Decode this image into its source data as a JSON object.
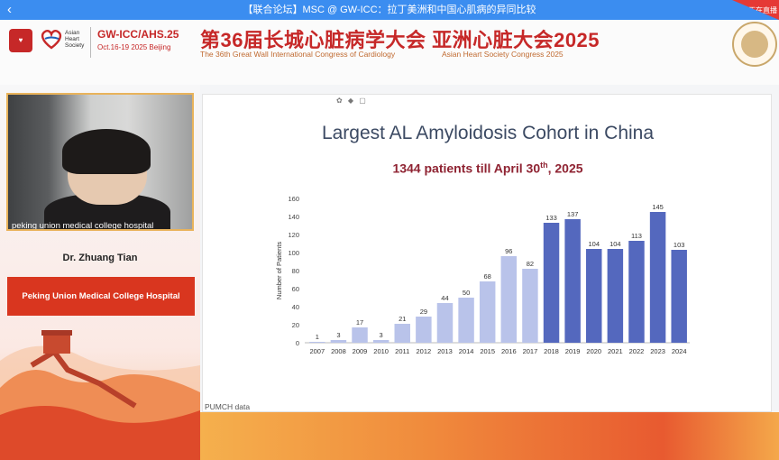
{
  "topbar": {
    "title": "【联合论坛】MSC @ GW-ICC：拉丁美洲和中国心肌病的异同比较",
    "badge": "正在直播"
  },
  "header": {
    "ahs_label": "Asian Heart Society",
    "gwicc": "GW-ICC/AHS.25",
    "date": "Oct.16-19 2025 Beijing",
    "cn_title": "第36届长城心脏病学大会  亚洲心脏大会2025",
    "en_title_1": "The 36th Great Wall International Congress of Cardiology",
    "en_title_2": "Asian Heart Society Congress 2025"
  },
  "speaker": {
    "video_caption": "peking union medical college hospital",
    "name": "Dr. Zhuang Tian",
    "hospital": "Peking Union Medical College Hospital"
  },
  "slide": {
    "title": "Largest AL Amyloidosis Cohort in China",
    "subtitle_main": "1344 patients till April 30",
    "subtitle_sup": "th",
    "subtitle_end": ", 2025",
    "footnote": "PUMCH data",
    "top_icons": "✿ ◆ ▢"
  },
  "chart_data": {
    "type": "bar",
    "title": "",
    "xlabel": "",
    "ylabel": "Number of Patients",
    "ylim": [
      0,
      160
    ],
    "yticks": [
      0,
      20,
      40,
      60,
      80,
      100,
      120,
      140,
      160
    ],
    "categories": [
      "2007",
      "2008",
      "2009",
      "2010",
      "2011",
      "2012",
      "2013",
      "2014",
      "2015",
      "2016",
      "2017",
      "2018",
      "2019",
      "2020",
      "2021",
      "2022",
      "2023",
      "2024"
    ],
    "values": [
      1,
      3,
      17,
      3,
      21,
      29,
      44,
      50,
      68,
      96,
      82,
      133,
      137,
      104,
      104,
      113,
      145,
      103
    ],
    "colors": {
      "early": "#b9c3ea",
      "recent": "#5468be"
    },
    "recent_from": "2018",
    "grid": false
  }
}
